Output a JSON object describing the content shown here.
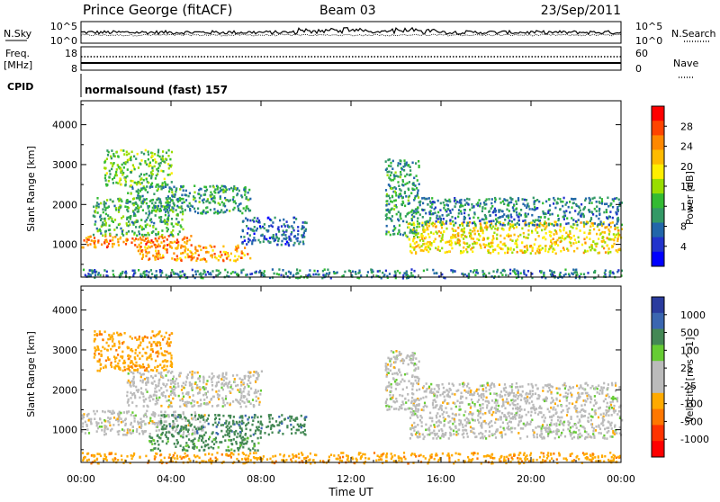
{
  "header": {
    "station": "Prince George (fitACF)",
    "beam": "Beam 03",
    "date": "23/Sep/2011"
  },
  "summary_panels": {
    "nsky_label": "N.Sky",
    "nsearch_label": "N.Search",
    "noise_ticks": [
      "10^5",
      "10^0"
    ],
    "freq_label_1": "Freq.",
    "freq_label_2": "[MHz]",
    "freq_ticks": [
      "18",
      "8"
    ],
    "nave_label": "Nave",
    "nave_ticks": [
      "60",
      "0"
    ],
    "cpid_label": "CPID",
    "cpid_value": "normalsound (fast) 157"
  },
  "colorbars": {
    "power": {
      "label": "Power [dB]",
      "ticks": [
        "28",
        "24",
        "20",
        "16",
        "12",
        "8",
        "4"
      ],
      "colors": [
        "#ff0000",
        "#ff4400",
        "#ff8800",
        "#ffbb00",
        "#ffee00",
        "#99dd00",
        "#33bb33",
        "#339966",
        "#2266aa",
        "#2233cc",
        "#0000ff"
      ]
    },
    "velocity": {
      "label": "Velocity [m s^-1]",
      "ticks": [
        "1000",
        "500",
        "100",
        "25",
        "-25",
        "-100",
        "-500",
        "-1000"
      ],
      "colors": [
        "#2a3c9e",
        "#3a66b0",
        "#448855",
        "#66cc33",
        "#bbbbbb",
        "#bbbbbb",
        "#ffaa00",
        "#ff7700",
        "#ff3300",
        "#ff0000"
      ]
    }
  },
  "chart_data": [
    {
      "type": "heatmap",
      "name": "Power",
      "xlabel": "",
      "ylabel": "Slant Range [km]",
      "x_ticks": [
        "00:00",
        "04:00",
        "08:00",
        "12:00",
        "16:00",
        "20:00",
        "00:00"
      ],
      "y_ticks": [
        1000,
        2000,
        3000,
        4000
      ],
      "xlim": [
        0,
        24
      ],
      "ylim": [
        180,
        4600
      ],
      "regions": [
        {
          "t": [
            0.0,
            5.0
          ],
          "r": [
            950,
            1250
          ],
          "value": 26
        },
        {
          "t": [
            0.5,
            4.5
          ],
          "r": [
            1250,
            2200
          ],
          "value": 12
        },
        {
          "t": [
            2.0,
            7.5
          ],
          "r": [
            1800,
            2500
          ],
          "value": 10
        },
        {
          "t": [
            2.5,
            7.5
          ],
          "r": [
            600,
            1000
          ],
          "value": 24
        },
        {
          "t": [
            7.0,
            10.0
          ],
          "r": [
            1000,
            1700
          ],
          "value": 6
        },
        {
          "t": [
            1.0,
            4.0
          ],
          "r": [
            2500,
            3400
          ],
          "value": 14
        },
        {
          "t": [
            13.5,
            15.0
          ],
          "r": [
            1200,
            3200
          ],
          "value": 10
        },
        {
          "t": [
            14.5,
            24.0
          ],
          "r": [
            800,
            1600
          ],
          "value": 20
        },
        {
          "t": [
            15.0,
            24.0
          ],
          "r": [
            1500,
            2200
          ],
          "value": 8
        },
        {
          "t": [
            0.0,
            24.0
          ],
          "r": [
            180,
            400
          ],
          "value": 8
        }
      ]
    },
    {
      "type": "heatmap",
      "name": "Velocity",
      "xlabel": "Time UT",
      "ylabel": "Slant Range [km]",
      "x_ticks": [
        "00:00",
        "04:00",
        "08:00",
        "12:00",
        "16:00",
        "20:00",
        "00:00"
      ],
      "y_ticks": [
        1000,
        2000,
        3000,
        4000
      ],
      "xlim": [
        0,
        24
      ],
      "ylim": [
        180,
        4600
      ],
      "regions": [
        {
          "t": [
            0.0,
            5.5
          ],
          "r": [
            900,
            1500
          ],
          "value": 0
        },
        {
          "t": [
            2.0,
            8.0
          ],
          "r": [
            1600,
            2500
          ],
          "value": 0
        },
        {
          "t": [
            3.5,
            10.0
          ],
          "r": [
            900,
            1400
          ],
          "value": 80
        },
        {
          "t": [
            3.0,
            8.0
          ],
          "r": [
            500,
            900
          ],
          "value": 60
        },
        {
          "t": [
            0.5,
            4.0
          ],
          "r": [
            2500,
            3500
          ],
          "value": -80
        },
        {
          "t": [
            13.5,
            15.0
          ],
          "r": [
            1500,
            3000
          ],
          "value": 0
        },
        {
          "t": [
            14.5,
            24.0
          ],
          "r": [
            800,
            1800
          ],
          "value": 0
        },
        {
          "t": [
            15.0,
            24.0
          ],
          "r": [
            1800,
            2200
          ],
          "value": 0
        },
        {
          "t": [
            0.0,
            24.0
          ],
          "r": [
            180,
            450
          ],
          "value": -80
        }
      ]
    }
  ]
}
